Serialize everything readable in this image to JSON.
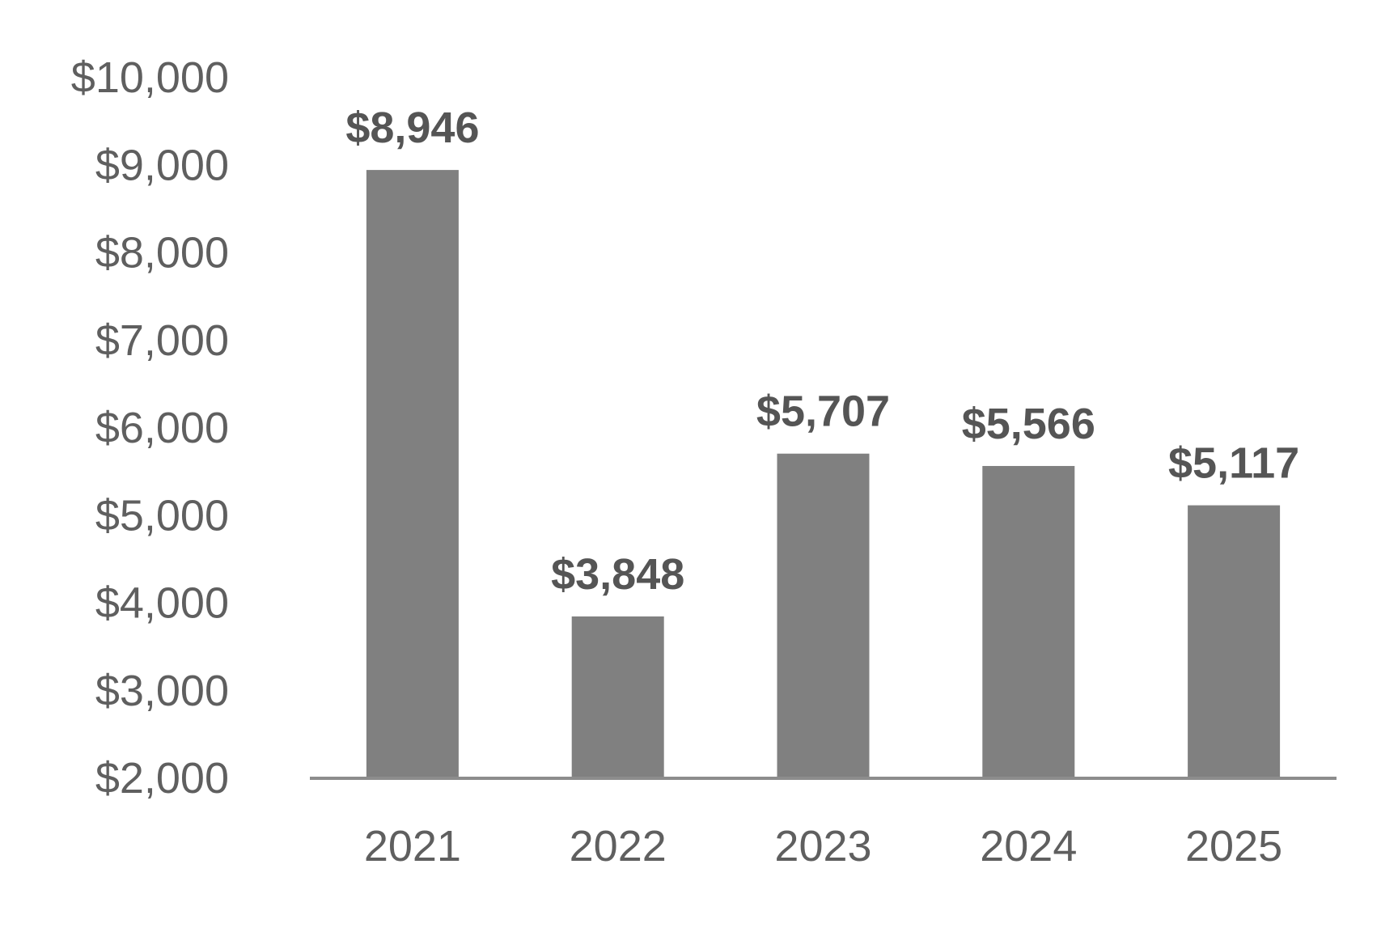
{
  "chart_data": {
    "type": "bar",
    "categories": [
      "2021",
      "2022",
      "2023",
      "2024",
      "2025"
    ],
    "values": [
      8946,
      3848,
      5707,
      5566,
      5117
    ],
    "value_labels": [
      "$8,946",
      "$3,848",
      "$5,707",
      "$5,566",
      "$5,117"
    ],
    "title": "",
    "xlabel": "",
    "ylabel": "",
    "ylim": [
      2000,
      10000
    ],
    "yticks": [
      2000,
      3000,
      4000,
      5000,
      6000,
      7000,
      8000,
      9000,
      10000
    ],
    "ytick_labels": [
      "$2,000",
      "$3,000",
      "$4,000",
      "$5,000",
      "$6,000",
      "$7,000",
      "$8,000",
      "$9,000",
      "$10,000"
    ],
    "grid": false,
    "legend": "none",
    "colors": {
      "bar": "#808080",
      "axis": "#8c8c8c",
      "tick_text": "#5f5f5f",
      "data_label": "#555555"
    }
  }
}
